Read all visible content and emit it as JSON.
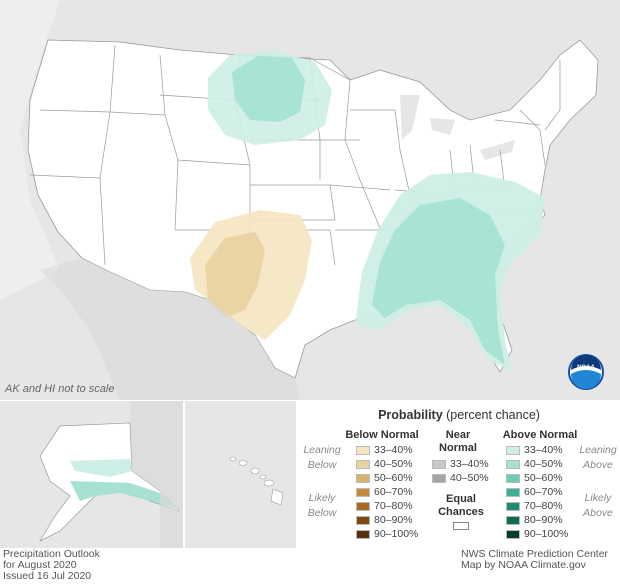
{
  "inset_note": "AK and HI not to scale",
  "legend": {
    "title_bold": "Probability",
    "title_rest": " (percent chance)",
    "below_header": "Below Normal",
    "near_header_1": "Near",
    "near_header_2": "Normal",
    "above_header": "Above Normal",
    "leaning_below": [
      "Leaning",
      "Below"
    ],
    "likely_below": [
      "Likely",
      "Below"
    ],
    "leaning_above": [
      "Leaning",
      "Above"
    ],
    "likely_above": [
      "Likely",
      "Above"
    ],
    "equal_1": "Equal",
    "equal_2": "Chances",
    "below_items": [
      {
        "label": "33–40%",
        "color": "#f5e6c1"
      },
      {
        "label": "40–50%",
        "color": "#e9d3a1"
      },
      {
        "label": "50–60%",
        "color": "#d9b26b"
      },
      {
        "label": "60–70%",
        "color": "#c48b3a"
      },
      {
        "label": "70–80%",
        "color": "#a86a22"
      },
      {
        "label": "80–90%",
        "color": "#7f4a12"
      },
      {
        "label": "90–100%",
        "color": "#5a300a"
      }
    ],
    "near_items": [
      {
        "label": "33–40%",
        "color": "#c8c8c8"
      },
      {
        "label": "40–50%",
        "color": "#a6a6a6"
      }
    ],
    "above_items": [
      {
        "label": "33–40%",
        "color": "#cdeee6"
      },
      {
        "label": "40–50%",
        "color": "#a7e1d3"
      },
      {
        "label": "50–60%",
        "color": "#6fcbb5"
      },
      {
        "label": "60–70%",
        "color": "#3fae95"
      },
      {
        "label": "70–80%",
        "color": "#1f8a72"
      },
      {
        "label": "80–90%",
        "color": "#0e6a55"
      },
      {
        "label": "90–100%",
        "color": "#053d30"
      }
    ]
  },
  "footer": {
    "left_1": "Precipitation Outlook",
    "left_2": "for August 2020",
    "left_3": "Issued 16 Jul 2020",
    "right_1": "NWS Climate Prediction Center",
    "right_2": "Map by NOAA Climate.gov"
  },
  "logo_text": "NOAA"
}
